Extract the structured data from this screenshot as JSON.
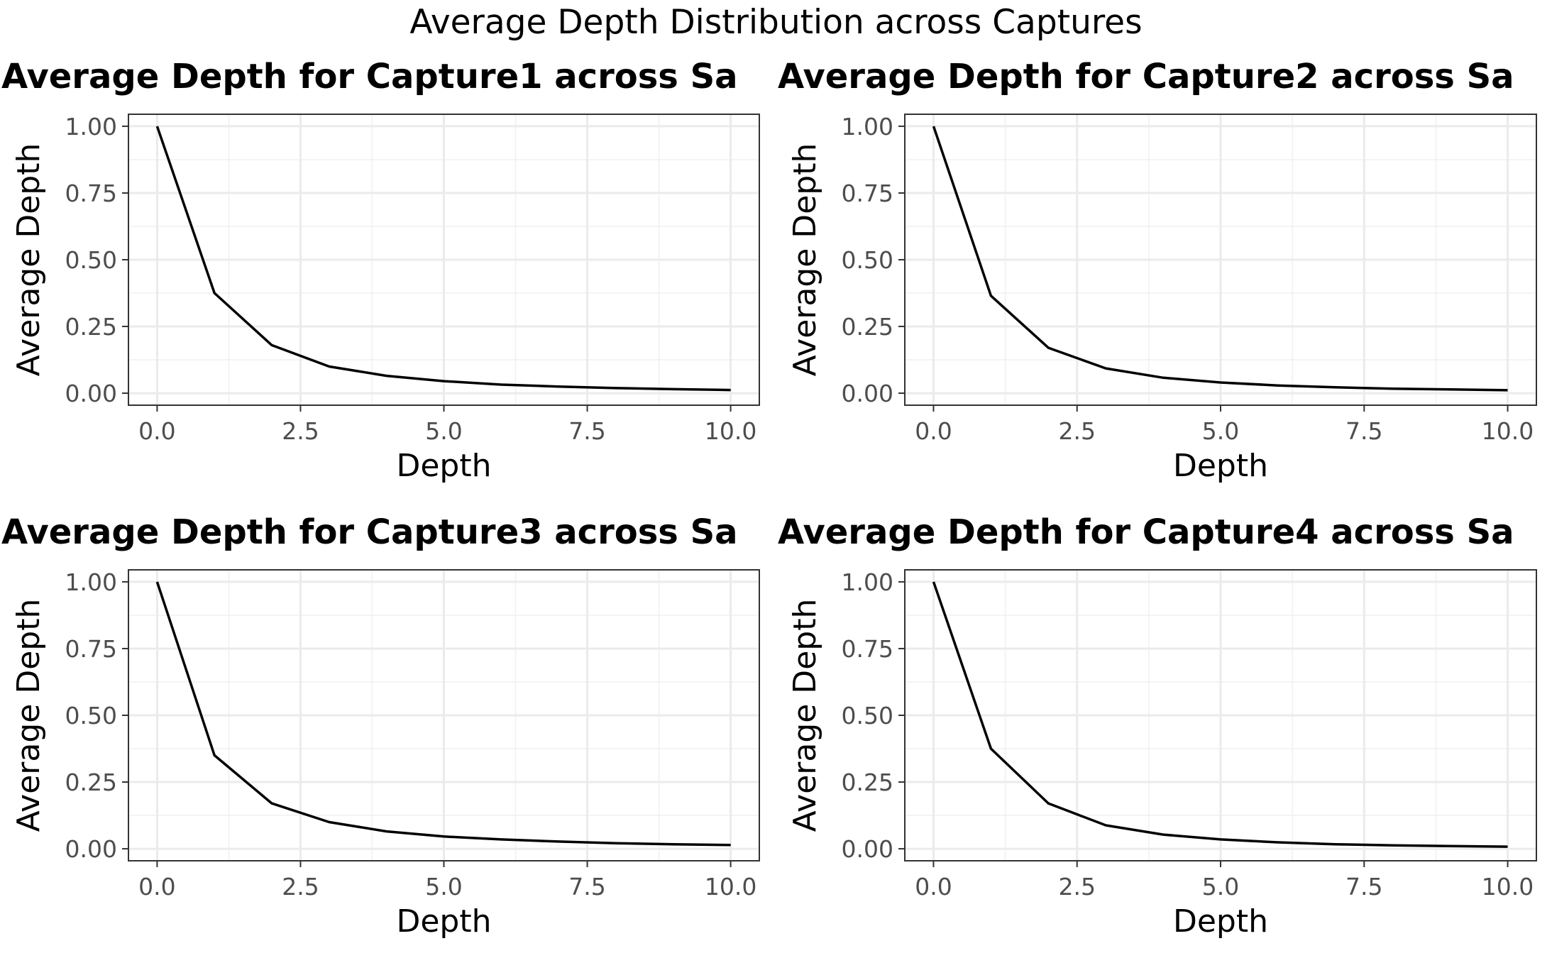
{
  "figure_title": "Average Depth Distribution across Captures",
  "chart_data": [
    {
      "type": "line",
      "title": "Average Depth for Capture1 across Sa",
      "xlabel": "Depth",
      "ylabel": "Average Depth",
      "xlim": [
        -0.5,
        10.5
      ],
      "ylim": [
        -0.045,
        1.045
      ],
      "xticks": [
        "0.0",
        "2.5",
        "5.0",
        "7.5",
        "10.0"
      ],
      "yticks": [
        "0.00",
        "0.25",
        "0.50",
        "0.75",
        "1.00"
      ],
      "grid": true,
      "x": [
        0,
        1,
        2,
        3,
        4,
        5,
        6,
        7,
        8,
        9,
        10
      ],
      "series": [
        {
          "values": [
            1.0,
            0.375,
            0.18,
            0.1,
            0.065,
            0.045,
            0.032,
            0.025,
            0.019,
            0.015,
            0.012
          ],
          "color": "#000000"
        }
      ]
    },
    {
      "type": "line",
      "title": "Average Depth for Capture2 across Sa",
      "xlabel": "Depth",
      "ylabel": "Average Depth",
      "xlim": [
        -0.5,
        10.5
      ],
      "ylim": [
        -0.045,
        1.045
      ],
      "xticks": [
        "0.0",
        "2.5",
        "5.0",
        "7.5",
        "10.0"
      ],
      "yticks": [
        "0.00",
        "0.25",
        "0.50",
        "0.75",
        "1.00"
      ],
      "grid": true,
      "x": [
        0,
        1,
        2,
        3,
        4,
        5,
        6,
        7,
        8,
        9,
        10
      ],
      "series": [
        {
          "values": [
            1.0,
            0.365,
            0.17,
            0.093,
            0.058,
            0.04,
            0.029,
            0.022,
            0.017,
            0.014,
            0.011
          ],
          "color": "#000000"
        }
      ]
    },
    {
      "type": "line",
      "title": "Average Depth for Capture3 across Sa",
      "xlabel": "Depth",
      "ylabel": "Average Depth",
      "xlim": [
        -0.5,
        10.5
      ],
      "ylim": [
        -0.045,
        1.045
      ],
      "xticks": [
        "0.0",
        "2.5",
        "5.0",
        "7.5",
        "10.0"
      ],
      "yticks": [
        "0.00",
        "0.25",
        "0.50",
        "0.75",
        "1.00"
      ],
      "grid": true,
      "x": [
        0,
        1,
        2,
        3,
        4,
        5,
        6,
        7,
        8,
        9,
        10
      ],
      "series": [
        {
          "values": [
            1.0,
            0.35,
            0.17,
            0.1,
            0.065,
            0.046,
            0.035,
            0.027,
            0.021,
            0.017,
            0.014
          ],
          "color": "#000000"
        }
      ]
    },
    {
      "type": "line",
      "title": "Average Depth for Capture4 across Sa",
      "xlabel": "Depth",
      "ylabel": "Average Depth",
      "xlim": [
        -0.5,
        10.5
      ],
      "ylim": [
        -0.045,
        1.045
      ],
      "xticks": [
        "0.0",
        "2.5",
        "5.0",
        "7.5",
        "10.0"
      ],
      "yticks": [
        "0.00",
        "0.25",
        "0.50",
        "0.75",
        "1.00"
      ],
      "grid": true,
      "x": [
        0,
        1,
        2,
        3,
        4,
        5,
        6,
        7,
        8,
        9,
        10
      ],
      "series": [
        {
          "values": [
            1.0,
            0.375,
            0.17,
            0.088,
            0.053,
            0.035,
            0.024,
            0.017,
            0.013,
            0.01,
            0.008
          ],
          "color": "#000000"
        }
      ]
    }
  ]
}
